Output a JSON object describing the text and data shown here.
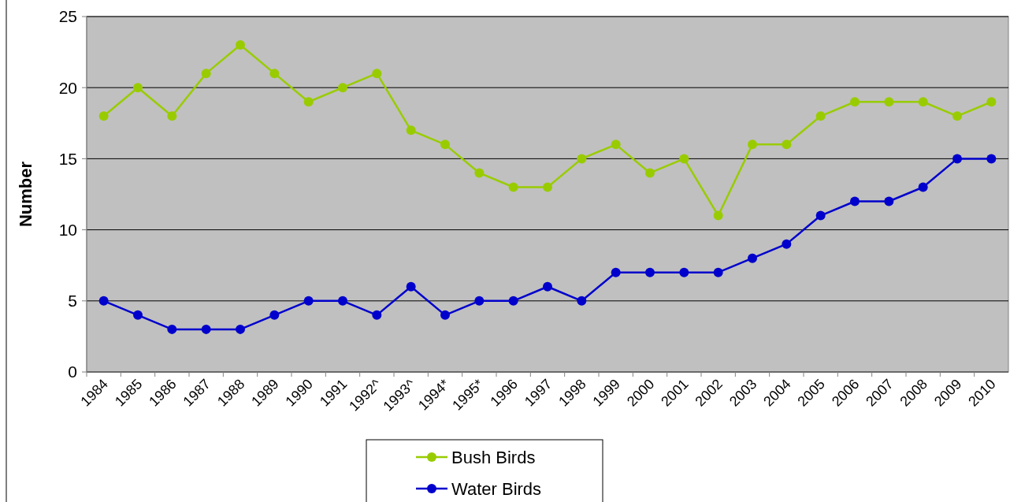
{
  "chart_data": {
    "type": "line",
    "ylabel": "Number",
    "categories": [
      "1984",
      "1985",
      "1986",
      "1987",
      "1988",
      "1989",
      "1990",
      "1991",
      "1992^",
      "1993^",
      "1994*",
      "1995*",
      "1996",
      "1997",
      "1998",
      "1999",
      "2000",
      "2001",
      "2002",
      "2003",
      "2004",
      "2005",
      "2006",
      "2007",
      "2008",
      "2009",
      "2010"
    ],
    "series": [
      {
        "name": "Bush Birds",
        "color": "#99cc00",
        "values": [
          18,
          20,
          18,
          21,
          23,
          21,
          19,
          20,
          21,
          17,
          16,
          14,
          13,
          13,
          15,
          16,
          14,
          15,
          11,
          16,
          16,
          18,
          19,
          19,
          19,
          18,
          19
        ]
      },
      {
        "name": "Water Birds",
        "color": "#0000cc",
        "values": [
          5,
          4,
          3,
          3,
          3,
          4,
          5,
          5,
          4,
          6,
          4,
          5,
          5,
          6,
          5,
          7,
          7,
          7,
          7,
          8,
          9,
          11,
          12,
          12,
          13,
          15,
          15
        ]
      }
    ],
    "ylim": [
      0,
      25
    ],
    "yticks": [
      0,
      5,
      10,
      15,
      20,
      25
    ],
    "grid": "y",
    "legend": "bottom",
    "marker": "circle",
    "line_style": "solid"
  }
}
